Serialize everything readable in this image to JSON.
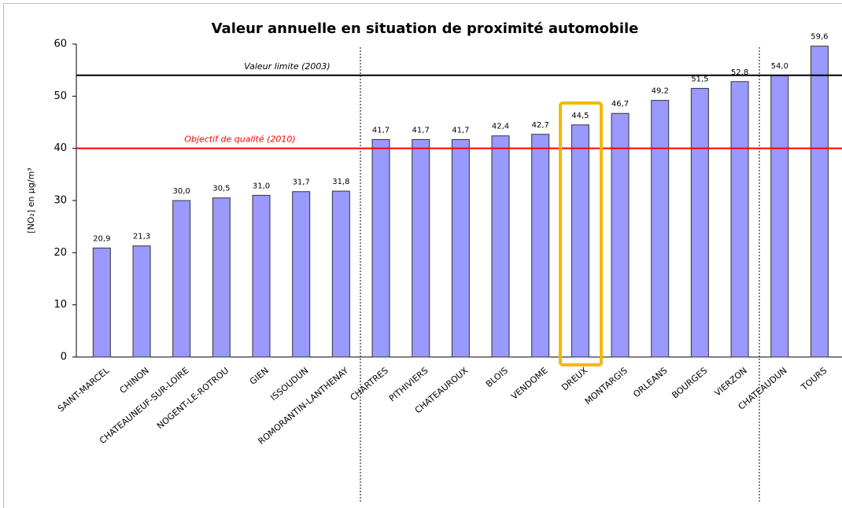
{
  "chart_data": {
    "type": "bar",
    "title": "Valeur annuelle en situation de proximité automobile",
    "y_label": "[NO₂] en µg/m³",
    "categories": [
      "SAINT-MARCEL",
      "CHINON",
      "CHATEAUNEUF-SUR-LOIRE",
      "NOGENT-LE-ROTROU",
      "GIEN",
      "ISSOUDUN",
      "ROMORANTIN-LANTHENAY",
      "CHARTRES",
      "PITHIVIERS",
      "CHATEAUROUX",
      "BLOIS",
      "VENDOME",
      "DREUX",
      "MONTARGIS",
      "ORLEANS",
      "BOURGES",
      "VIERZON",
      "CHATEAUDUN",
      "TOURS"
    ],
    "values": [
      20.9,
      21.3,
      30.0,
      30.5,
      31.0,
      31.7,
      31.8,
      41.7,
      41.7,
      41.7,
      42.4,
      42.7,
      44.5,
      46.7,
      49.2,
      51.5,
      52.8,
      54.0,
      59.6
    ],
    "value_labels": [
      "20,9",
      "21,3",
      "30,0",
      "30,5",
      "31,0",
      "31,7",
      "31,8",
      "41,7",
      "41,7",
      "41,7",
      "42,4",
      "42,7",
      "44,5",
      "46,7",
      "49,2",
      "51,5",
      "52,8",
      "54,0",
      "59,6"
    ],
    "color": "#9999ff",
    "ylim": [
      0,
      60
    ],
    "yticks": [
      0,
      10,
      20,
      30,
      40,
      50,
      60
    ],
    "reference_lines": [
      {
        "label": "Valeur limite (2003)",
        "value": 54,
        "color": "#000000"
      },
      {
        "label": "Objectif de qualité (2010)",
        "value": 40,
        "color": "#ff0000"
      }
    ]
  }
}
